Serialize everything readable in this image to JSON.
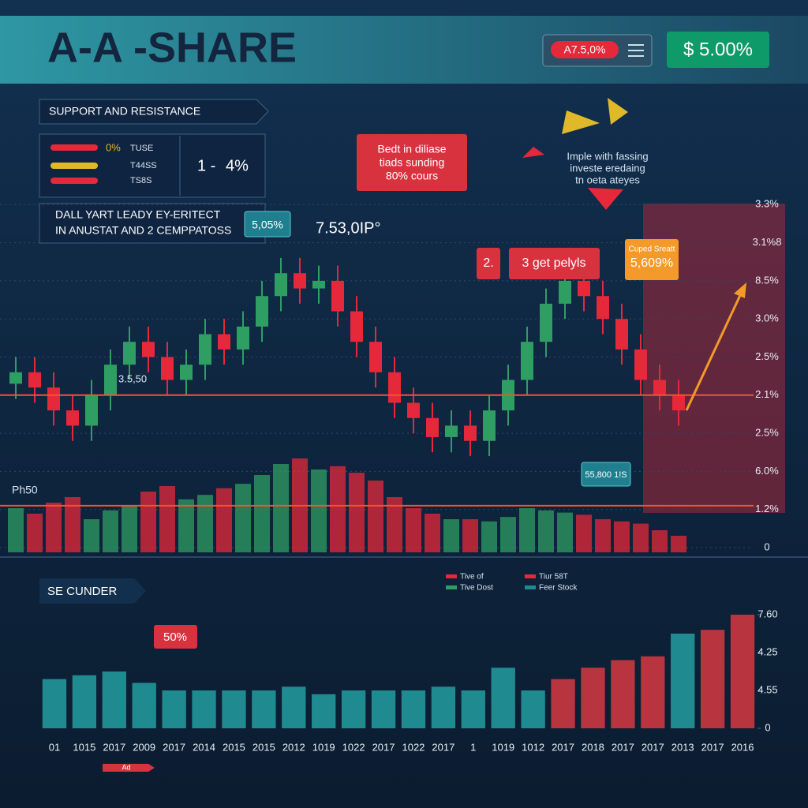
{
  "header": {
    "title": "A-A -SHARE",
    "badge_red": "A7.5,0%",
    "badge_green": "$ 5.00%"
  },
  "panel": {
    "title": "SUPPORT AND RESISTANCE",
    "rows": [
      {
        "value": "0%",
        "label": "TUSE"
      },
      {
        "label": "T44SS"
      },
      {
        "label": "TS8S"
      }
    ],
    "big": [
      "1 -",
      "4%"
    ],
    "note": [
      "DALL YART LEADY EY-ERITECT",
      "IN ANUSTAT AND 2 CEMPPATOSS"
    ]
  },
  "callouts": {
    "red_box": [
      "Bedt in diliase",
      "tiads sunding",
      "80% cours"
    ],
    "price": "7.53,0IP°",
    "teal_small": "5,05%",
    "red_small": "2.",
    "red_wide": "3 get pelyls",
    "right_note": [
      "Imple with fassing",
      "investe eredaing",
      "tn oeta ateyes"
    ],
    "orange_box": [
      "Cuped Sreatt",
      "5,609%"
    ],
    "left_level": "3.5,50",
    "bottom_left": "Ph50",
    "teal_bottom": "55,800 1!S"
  },
  "chart_data": [
    {
      "type": "candlestick",
      "open": [
        4.3,
        4.6,
        4.2,
        3.6,
        3.2,
        4.0,
        4.8,
        5.4,
        5.0,
        4.4,
        4.8,
        5.6,
        5.2,
        5.8,
        6.6,
        7.2,
        6.8,
        7.0,
        6.2,
        5.4,
        4.6,
        3.8,
        3.4,
        2.9,
        3.2,
        2.8,
        3.6,
        4.4,
        5.4,
        6.4,
        7.0,
        6.6,
        6.0,
        5.2,
        4.4,
        4.0
      ],
      "close": [
        4.6,
        4.2,
        3.6,
        3.2,
        4.0,
        4.8,
        5.4,
        5.0,
        4.4,
        4.8,
        5.6,
        5.2,
        5.8,
        6.6,
        7.2,
        6.8,
        7.0,
        6.2,
        5.4,
        4.6,
        3.8,
        3.4,
        2.9,
        3.2,
        2.8,
        3.6,
        4.4,
        5.4,
        6.4,
        7.0,
        6.6,
        6.0,
        5.2,
        4.4,
        4.0,
        3.6
      ],
      "high": [
        5.0,
        5.0,
        4.6,
        4.0,
        4.4,
        5.2,
        5.8,
        5.8,
        5.4,
        5.2,
        6.0,
        6.0,
        6.2,
        7.0,
        7.6,
        7.6,
        7.4,
        7.4,
        6.6,
        5.8,
        5.0,
        4.2,
        3.8,
        3.6,
        3.6,
        4.0,
        4.8,
        5.8,
        6.8,
        7.4,
        7.4,
        7.0,
        6.4,
        5.6,
        4.8,
        4.4
      ],
      "low": [
        3.9,
        3.8,
        3.2,
        2.8,
        2.8,
        3.6,
        4.4,
        4.6,
        4.0,
        4.0,
        4.4,
        4.8,
        4.8,
        5.4,
        6.2,
        6.4,
        6.4,
        5.8,
        5.0,
        4.2,
        3.4,
        3.0,
        2.5,
        2.5,
        2.4,
        2.4,
        3.2,
        4.0,
        5.0,
        6.0,
        6.2,
        5.6,
        4.8,
        4.0,
        3.6,
        3.2
      ],
      "volume": [
        40,
        35,
        45,
        50,
        30,
        38,
        42,
        55,
        60,
        48,
        52,
        58,
        62,
        70,
        80,
        85,
        75,
        78,
        72,
        65,
        50,
        40,
        35,
        30,
        30,
        28,
        32,
        40,
        38,
        36,
        34,
        30,
        28,
        26,
        20,
        15
      ],
      "volume_lim": [
        0,
        100
      ],
      "colors": {
        "up": "#2f9e63",
        "down": "#e5283a"
      },
      "ylim": [
        0,
        10
      ],
      "yticks": [
        {
          "value": 9,
          "label": "3.3%"
        },
        {
          "value": 8,
          "label": "3.1%8"
        },
        {
          "value": 7,
          "label": "8.5%"
        },
        {
          "value": 6,
          "label": "3.0%"
        },
        {
          "value": 5,
          "label": "2.5%"
        },
        {
          "value": 4,
          "label": "2.1%"
        },
        {
          "value": 3,
          "label": "2.5%"
        },
        {
          "value": 2,
          "label": "6.0%"
        },
        {
          "value": 1,
          "label": "1.2%"
        },
        0
      ],
      "support_levels": [
        4.0,
        1.1
      ],
      "grid": true
    },
    {
      "type": "bar",
      "categories": [
        "01",
        "1015",
        "2017",
        "2009",
        "2017",
        "2014",
        "2015",
        "2015",
        "2012",
        "1019",
        "1022",
        "2017",
        "1022",
        "2017",
        "1",
        "1019",
        "1012",
        "2017",
        "2018",
        "2017",
        "2017",
        "2013",
        "2017",
        "2016"
      ],
      "values": [
        1.3,
        1.4,
        1.5,
        1.2,
        1.0,
        1.0,
        1.0,
        1.0,
        1.1,
        0.9,
        1.0,
        1.0,
        1.0,
        1.1,
        1.0,
        1.6,
        1.0,
        1.3,
        1.6,
        1.8,
        1.9,
        2.5,
        2.6,
        3.0
      ],
      "colors": [
        "#1f8a8f",
        "#1f8a8f",
        "#1f8a8f",
        "#1f8a8f",
        "#1f8a8f",
        "#1f8a8f",
        "#1f8a8f",
        "#1f8a8f",
        "#1f8a8f",
        "#1f8a8f",
        "#1f8a8f",
        "#1f8a8f",
        "#1f8a8f",
        "#1f8a8f",
        "#1f8a8f",
        "#1f8a8f",
        "#1f8a8f",
        "#b8343f",
        "#b8343f",
        "#b8343f",
        "#b8343f",
        "#1f8a8f",
        "#b8343f",
        "#b8343f"
      ],
      "ylim": [
        0,
        3.5
      ],
      "yticks": [
        0,
        {
          "value": 1,
          "label": "4.55"
        },
        {
          "value": 2,
          "label": "4.25"
        },
        {
          "value": 3,
          "label": "7.60"
        }
      ],
      "legend": [
        {
          "name": "Tive of",
          "color": "#e5283a"
        },
        {
          "name": "Tive Dost",
          "color": "#2f9e63"
        },
        {
          "name": "Tiur 58T",
          "color": "#e5283a"
        },
        {
          "name": "Feer Stock",
          "color": "#1f8a8f"
        }
      ]
    }
  ],
  "lower": {
    "title": "SE CUNDER",
    "badge": "50%",
    "footer": "Ad"
  }
}
